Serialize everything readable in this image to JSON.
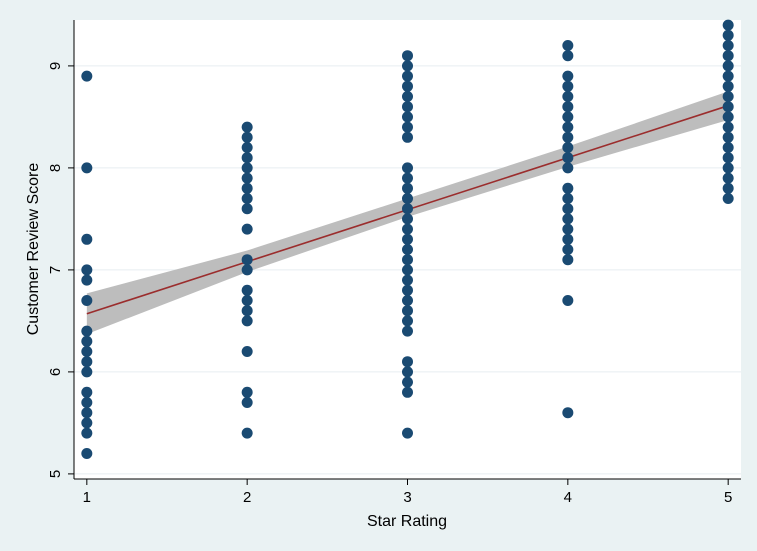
{
  "chart_data": {
    "type": "scatter",
    "title": "",
    "xlabel": "Star Rating",
    "ylabel": "Customer Review Score",
    "xlim": [
      0.92,
      5.08
    ],
    "ylim": [
      4.95,
      9.45
    ],
    "xticks": [
      1,
      2,
      3,
      4,
      5
    ],
    "yticks": [
      5,
      6,
      7,
      8,
      9
    ],
    "grid": "horizontal",
    "legend": "none",
    "colors": {
      "background": "#eaf2f3",
      "plot_area": "#ffffff",
      "points": "#1a4a72",
      "fit_line": "#9b2d2d",
      "confidence_band": "#bdbdbd",
      "grid": "#e8eef0"
    },
    "series": [
      {
        "type": "scatter",
        "points": [
          [
            1,
            8.9
          ],
          [
            1,
            8.0
          ],
          [
            1,
            7.3
          ],
          [
            1,
            7.0
          ],
          [
            1,
            6.9
          ],
          [
            1,
            6.7
          ],
          [
            1,
            6.4
          ],
          [
            1,
            6.3
          ],
          [
            1,
            6.2
          ],
          [
            1,
            6.1
          ],
          [
            1,
            6.0
          ],
          [
            1,
            5.8
          ],
          [
            1,
            5.7
          ],
          [
            1,
            5.6
          ],
          [
            1,
            5.5
          ],
          [
            1,
            5.4
          ],
          [
            1,
            5.2
          ],
          [
            2,
            8.4
          ],
          [
            2,
            8.3
          ],
          [
            2,
            8.2
          ],
          [
            2,
            8.1
          ],
          [
            2,
            8.0
          ],
          [
            2,
            7.9
          ],
          [
            2,
            7.8
          ],
          [
            2,
            7.7
          ],
          [
            2,
            7.6
          ],
          [
            2,
            7.4
          ],
          [
            2,
            7.1
          ],
          [
            2,
            7.0
          ],
          [
            2,
            6.8
          ],
          [
            2,
            6.7
          ],
          [
            2,
            6.6
          ],
          [
            2,
            6.5
          ],
          [
            2,
            6.2
          ],
          [
            2,
            5.8
          ],
          [
            2,
            5.7
          ],
          [
            2,
            5.4
          ],
          [
            3,
            9.1
          ],
          [
            3,
            9.0
          ],
          [
            3,
            8.9
          ],
          [
            3,
            8.8
          ],
          [
            3,
            8.7
          ],
          [
            3,
            8.6
          ],
          [
            3,
            8.5
          ],
          [
            3,
            8.4
          ],
          [
            3,
            8.3
          ],
          [
            3,
            8.0
          ],
          [
            3,
            7.9
          ],
          [
            3,
            7.8
          ],
          [
            3,
            7.7
          ],
          [
            3,
            7.6
          ],
          [
            3,
            7.5
          ],
          [
            3,
            7.4
          ],
          [
            3,
            7.3
          ],
          [
            3,
            7.2
          ],
          [
            3,
            7.1
          ],
          [
            3,
            7.0
          ],
          [
            3,
            6.9
          ],
          [
            3,
            6.8
          ],
          [
            3,
            6.7
          ],
          [
            3,
            6.6
          ],
          [
            3,
            6.5
          ],
          [
            3,
            6.4
          ],
          [
            3,
            6.1
          ],
          [
            3,
            6.0
          ],
          [
            3,
            5.9
          ],
          [
            3,
            5.8
          ],
          [
            3,
            5.4
          ],
          [
            4,
            9.2
          ],
          [
            4,
            9.1
          ],
          [
            4,
            8.9
          ],
          [
            4,
            8.8
          ],
          [
            4,
            8.7
          ],
          [
            4,
            8.6
          ],
          [
            4,
            8.5
          ],
          [
            4,
            8.4
          ],
          [
            4,
            8.3
          ],
          [
            4,
            8.2
          ],
          [
            4,
            8.1
          ],
          [
            4,
            8.0
          ],
          [
            4,
            7.8
          ],
          [
            4,
            7.7
          ],
          [
            4,
            7.6
          ],
          [
            4,
            7.5
          ],
          [
            4,
            7.4
          ],
          [
            4,
            7.3
          ],
          [
            4,
            7.2
          ],
          [
            4,
            7.1
          ],
          [
            4,
            6.7
          ],
          [
            4,
            5.6
          ],
          [
            5,
            9.4
          ],
          [
            5,
            9.3
          ],
          [
            5,
            9.2
          ],
          [
            5,
            9.1
          ],
          [
            5,
            9.0
          ],
          [
            5,
            8.9
          ],
          [
            5,
            8.8
          ],
          [
            5,
            8.7
          ],
          [
            5,
            8.6
          ],
          [
            5,
            8.5
          ],
          [
            5,
            8.4
          ],
          [
            5,
            8.3
          ],
          [
            5,
            8.2
          ],
          [
            5,
            8.1
          ],
          [
            5,
            8.0
          ],
          [
            5,
            7.9
          ],
          [
            5,
            7.8
          ],
          [
            5,
            7.7
          ]
        ]
      },
      {
        "type": "line",
        "x": [
          1,
          5
        ],
        "y": [
          6.57,
          8.61
        ]
      },
      {
        "type": "area",
        "x": [
          1,
          2,
          3,
          4,
          5
        ],
        "lower": [
          6.37,
          6.98,
          7.52,
          8.01,
          8.47
        ],
        "upper": [
          6.77,
          7.19,
          7.7,
          8.21,
          8.75
        ]
      }
    ]
  }
}
